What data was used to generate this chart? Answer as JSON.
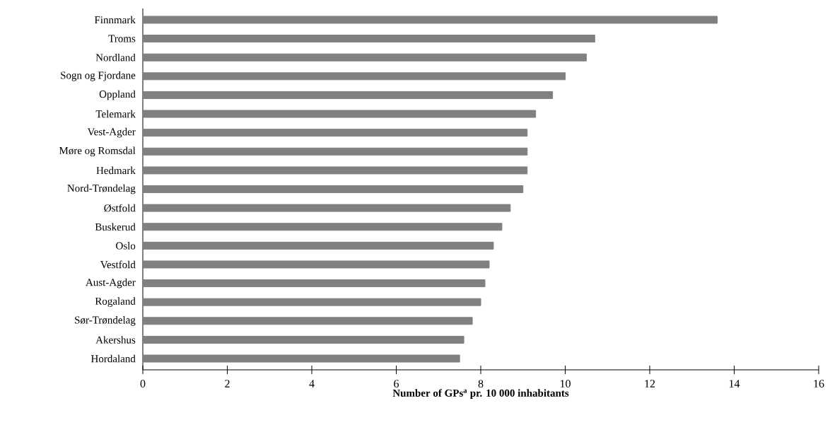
{
  "chart_data": {
    "type": "bar",
    "orientation": "horizontal",
    "xlabel": "Number of GPs$^{a}$ pr. 10 000 inhabitants",
    "categories": [
      "Finnmark",
      "Troms",
      "Nordland",
      "Sogn og Fjordane",
      "Oppland",
      "Telemark",
      "Vest-Agder",
      "Møre og Romsdal",
      "Hedmark",
      "Nord-Trøndelag",
      "Østfold",
      "Buskerud",
      "Oslo",
      "Vestfold",
      "Aust-Agder",
      "Rogaland",
      "Sør-Trøndelag",
      "Akershus",
      "Hordaland"
    ],
    "values": [
      13.6,
      10.7,
      10.5,
      10.0,
      9.7,
      9.3,
      9.1,
      9.1,
      9.1,
      9.0,
      8.7,
      8.5,
      8.3,
      8.2,
      8.1,
      8.0,
      7.8,
      7.6,
      7.5
    ],
    "color": "#808080",
    "xlim": [
      0,
      16
    ],
    "xticks": [
      0,
      2,
      4,
      6,
      8,
      10,
      12,
      14,
      16
    ]
  }
}
